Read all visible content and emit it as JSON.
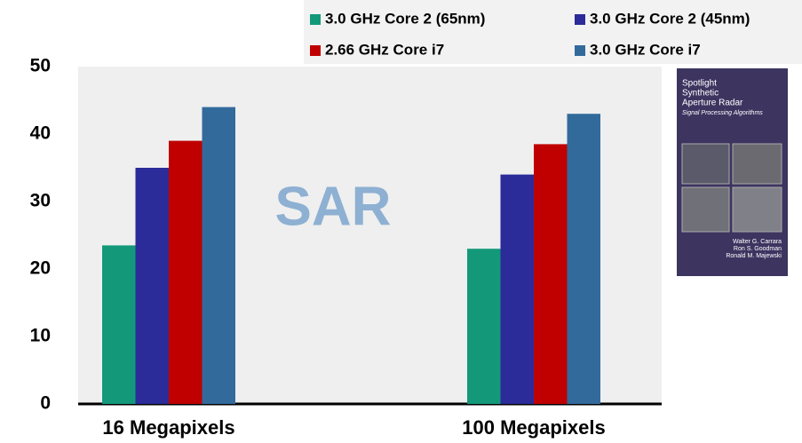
{
  "chart_data": {
    "type": "bar",
    "annotation": "SAR",
    "categories": [
      "16 Megapixels",
      "100 Megapixels"
    ],
    "series": [
      {
        "name": "3.0 GHz Core 2 (65nm)",
        "color": "#13997a",
        "values": [
          23.5,
          23
        ]
      },
      {
        "name": "3.0 GHz Core 2 (45nm)",
        "color": "#2b2b99",
        "values": [
          35,
          34
        ]
      },
      {
        "name": "2.66 GHz Core i7",
        "color": "#c00000",
        "values": [
          39,
          38.5
        ]
      },
      {
        "name": "3.0 GHz Core i7",
        "color": "#336a9c",
        "values": [
          44,
          43
        ]
      }
    ],
    "ylim": [
      0,
      50
    ],
    "yticks": [
      0,
      10,
      20,
      30,
      40,
      50
    ],
    "grid": false,
    "legend": "top"
  },
  "book": {
    "title": [
      "Spotlight",
      "Synthetic",
      "Aperture Radar"
    ],
    "subtitle": "Signal Processing Algorithms",
    "authors": [
      "Walter G. Carrara",
      "Ron S. Goodman",
      "Ronald M. Majewski"
    ]
  }
}
